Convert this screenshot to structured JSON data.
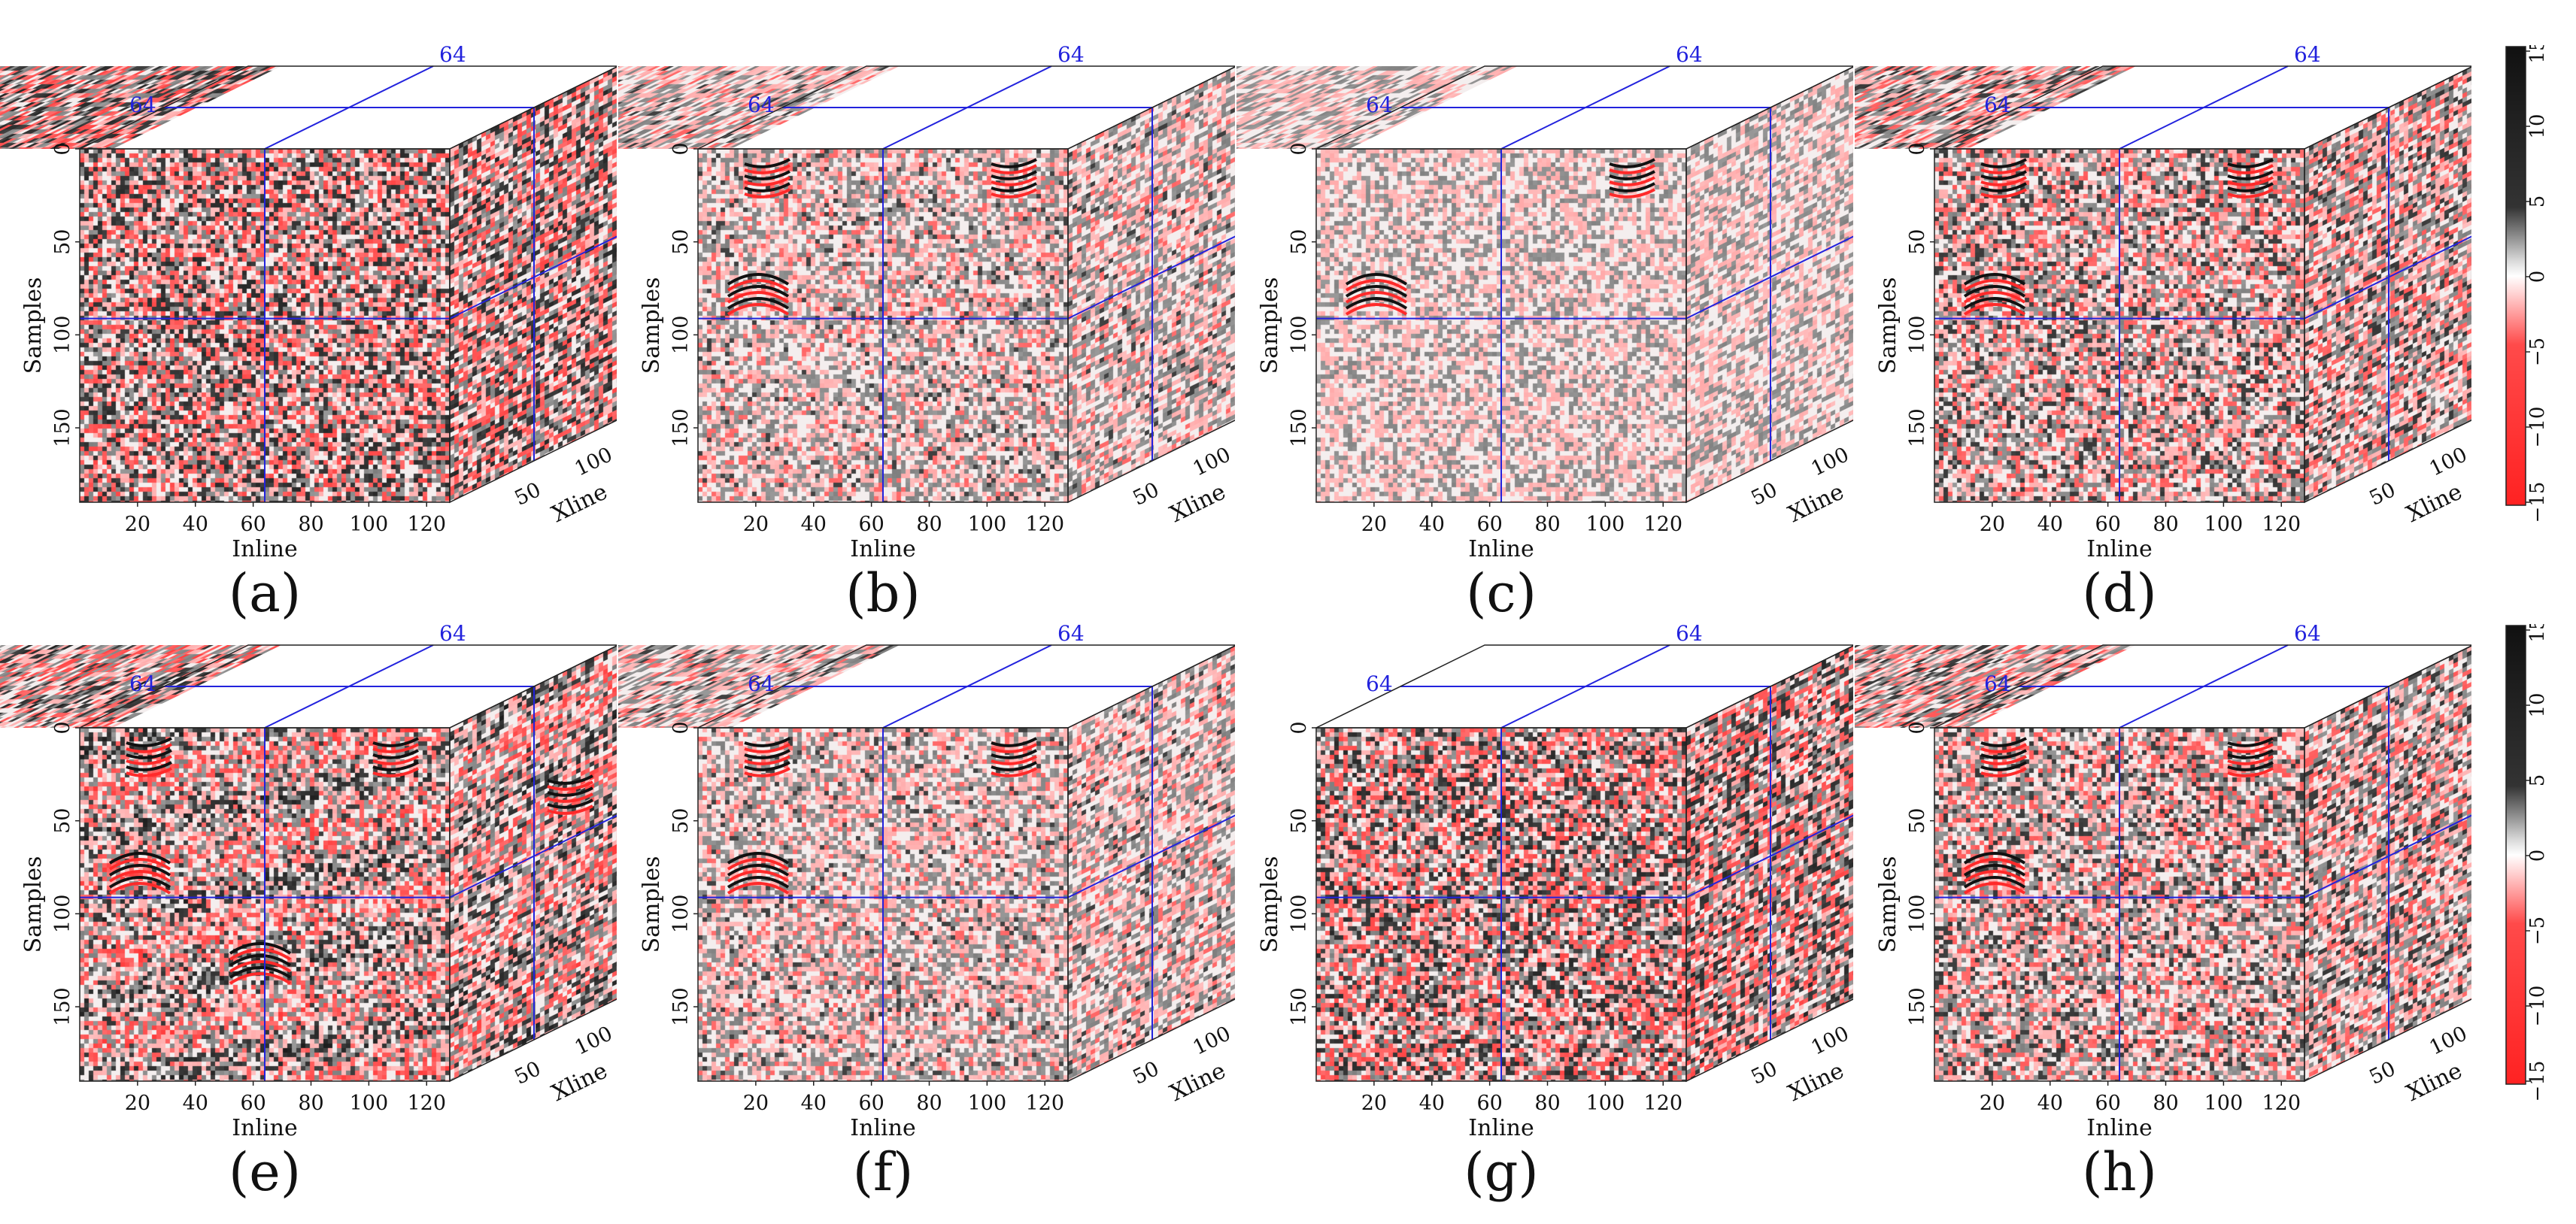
{
  "axes": {
    "inline_label": "Inline",
    "xline_label": "Xline",
    "samples_label": "Samples",
    "inline_ticks": [
      "20",
      "40",
      "60",
      "80",
      "100",
      "120"
    ],
    "samples_ticks": [
      "0",
      "50",
      "100",
      "150"
    ],
    "xline_ticks": [
      "50",
      "100"
    ],
    "slice_inline": "64",
    "slice_xline": "64",
    "slice_sample": "90"
  },
  "colorbar": {
    "ticks": [
      "15",
      "10",
      "5",
      "0",
      "−5",
      "−10",
      "−15"
    ],
    "range": [
      -15,
      15
    ]
  },
  "colors": {
    "positive": "#111111",
    "negative": "#ff2a2a",
    "slice_line": "#2222dd"
  },
  "panels": [
    {
      "label": "(a)",
      "style": "noise",
      "top_blank": false
    },
    {
      "label": "(b)",
      "style": "light",
      "top_blank": false
    },
    {
      "label": "(c)",
      "style": "lighter",
      "top_blank": false
    },
    {
      "label": "(d)",
      "style": "mid",
      "top_blank": false
    },
    {
      "label": "(e)",
      "style": "full",
      "top_blank": false
    },
    {
      "label": "(f)",
      "style": "light",
      "top_blank": false
    },
    {
      "label": "(g)",
      "style": "noise",
      "top_blank": true
    },
    {
      "label": "(h)",
      "style": "mid",
      "top_blank": false
    }
  ]
}
